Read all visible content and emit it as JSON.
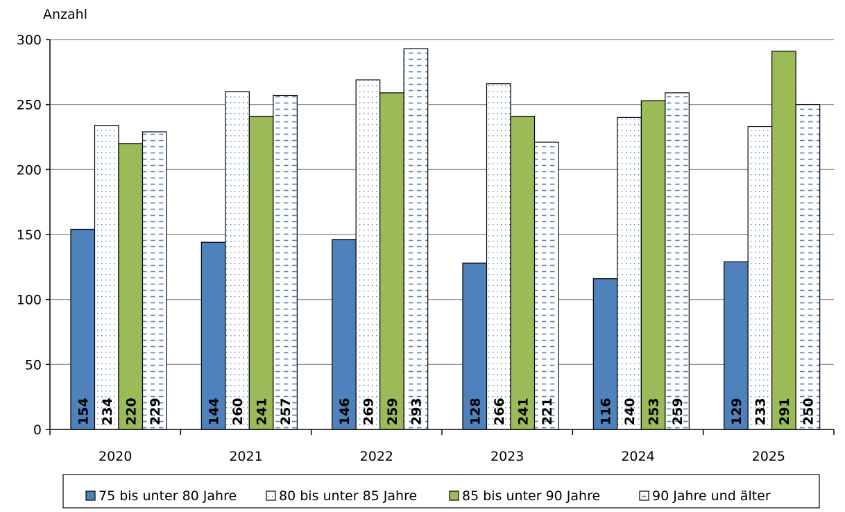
{
  "chart_data": {
    "type": "bar",
    "ylabel": "Anzahl",
    "ylim": [
      0,
      300
    ],
    "yticks": [
      0,
      50,
      100,
      150,
      200,
      250,
      300
    ],
    "grid": true,
    "legend_position": "bottom",
    "categories": [
      "2020",
      "2021",
      "2022",
      "2023",
      "2024",
      "2025"
    ],
    "series": [
      {
        "name": "75 bis unter 80 Jahre",
        "pattern": "solid",
        "color": "#4f81bd",
        "values": [
          154,
          144,
          146,
          128,
          116,
          129
        ]
      },
      {
        "name": "80 bis unter 85 Jahre",
        "pattern": "dots",
        "color": "#4f81bd",
        "values": [
          234,
          260,
          269,
          266,
          240,
          233
        ]
      },
      {
        "name": "85 bis unter 90 Jahre",
        "pattern": "solid",
        "color": "#9bbb59",
        "values": [
          220,
          241,
          259,
          241,
          253,
          291
        ]
      },
      {
        "name": "90 Jahre und älter",
        "pattern": "dashes",
        "color": "#4f81bd",
        "values": [
          229,
          257,
          293,
          221,
          259,
          250
        ]
      }
    ]
  }
}
